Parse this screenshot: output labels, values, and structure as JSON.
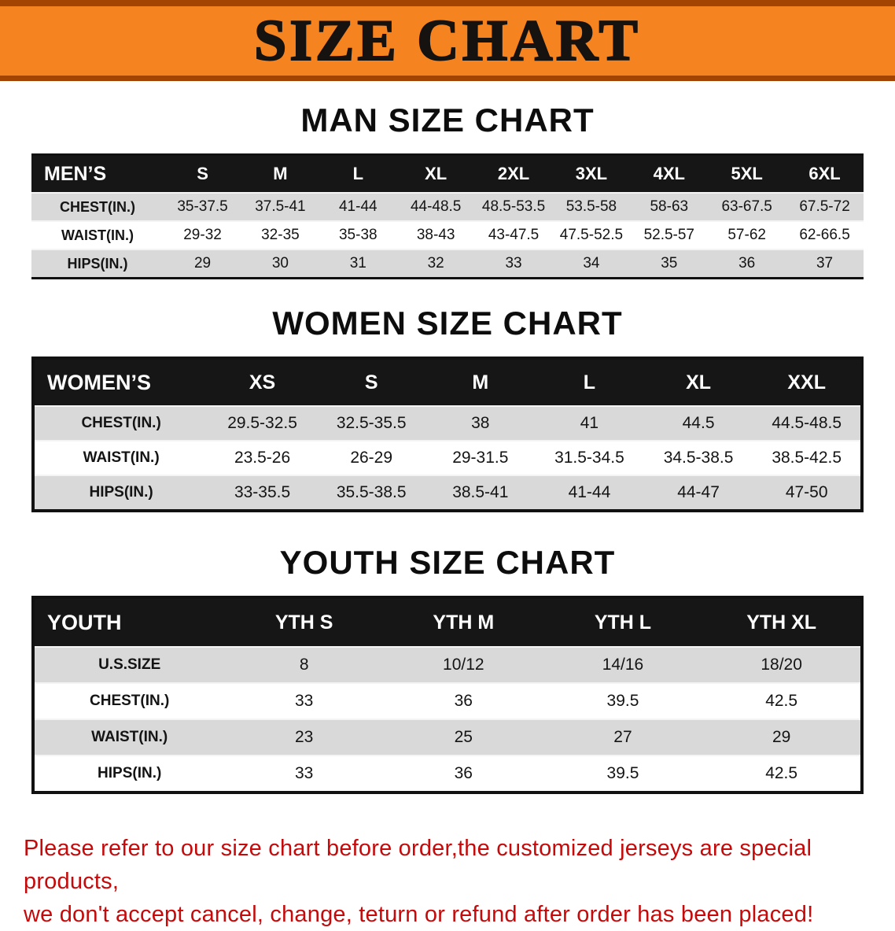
{
  "banner": {
    "title": "SIZE CHART",
    "bg_color": "#f5831f",
    "stripe_color": "#a34403",
    "text_color": "#151210"
  },
  "sections": [
    {
      "id": "men",
      "heading": "MAN SIZE CHART",
      "table": {
        "header": [
          "MEN’S",
          "S",
          "M",
          "L",
          "XL",
          "2XL",
          "3XL",
          "4XL",
          "5XL",
          "6XL"
        ],
        "rows": [
          [
            "CHEST(IN.)",
            "35-37.5",
            "37.5-41",
            "41-44",
            "44-48.5",
            "48.5-53.5",
            "53.5-58",
            "58-63",
            "63-67.5",
            "67.5-72"
          ],
          [
            "WAIST(IN.)",
            "29-32",
            "32-35",
            "35-38",
            "38-43",
            "43-47.5",
            "47.5-52.5",
            "52.5-57",
            "57-62",
            "62-66.5"
          ],
          [
            "HIPS(IN.)",
            "29",
            "30",
            "31",
            "32",
            "33",
            "34",
            "35",
            "36",
            "37"
          ]
        ]
      }
    },
    {
      "id": "women",
      "heading": "WOMEN SIZE CHART",
      "table": {
        "header": [
          "WOMEN’S",
          "XS",
          "S",
          "M",
          "L",
          "XL",
          "XXL"
        ],
        "rows": [
          [
            "CHEST(IN.)",
            "29.5-32.5",
            "32.5-35.5",
            "38",
            "41",
            "44.5",
            "44.5-48.5"
          ],
          [
            "WAIST(IN.)",
            "23.5-26",
            "26-29",
            "29-31.5",
            "31.5-34.5",
            "34.5-38.5",
            "38.5-42.5"
          ],
          [
            "HIPS(IN.)",
            "33-35.5",
            "35.5-38.5",
            "38.5-41",
            "41-44",
            "44-47",
            "47-50"
          ]
        ]
      }
    },
    {
      "id": "youth",
      "heading": "YOUTH SIZE CHART",
      "table": {
        "header": [
          "YOUTH",
          "YTH S",
          "YTH M",
          "YTH L",
          "YTH XL"
        ],
        "rows": [
          [
            "U.S.SIZE",
            "8",
            "10/12",
            "14/16",
            "18/20"
          ],
          [
            "CHEST(IN.)",
            "33",
            "36",
            "39.5",
            "42.5"
          ],
          [
            "WAIST(IN.)",
            "23",
            "25",
            "27",
            "29"
          ],
          [
            "HIPS(IN.)",
            "33",
            "36",
            "39.5",
            "42.5"
          ]
        ]
      }
    }
  ],
  "footer": {
    "line1": "Please refer to our size chart before order,the customized jerseys are special products,",
    "line2": "we don't accept cancel, change, teturn or refund after order has been placed!",
    "text_color": "#c40a0a"
  }
}
